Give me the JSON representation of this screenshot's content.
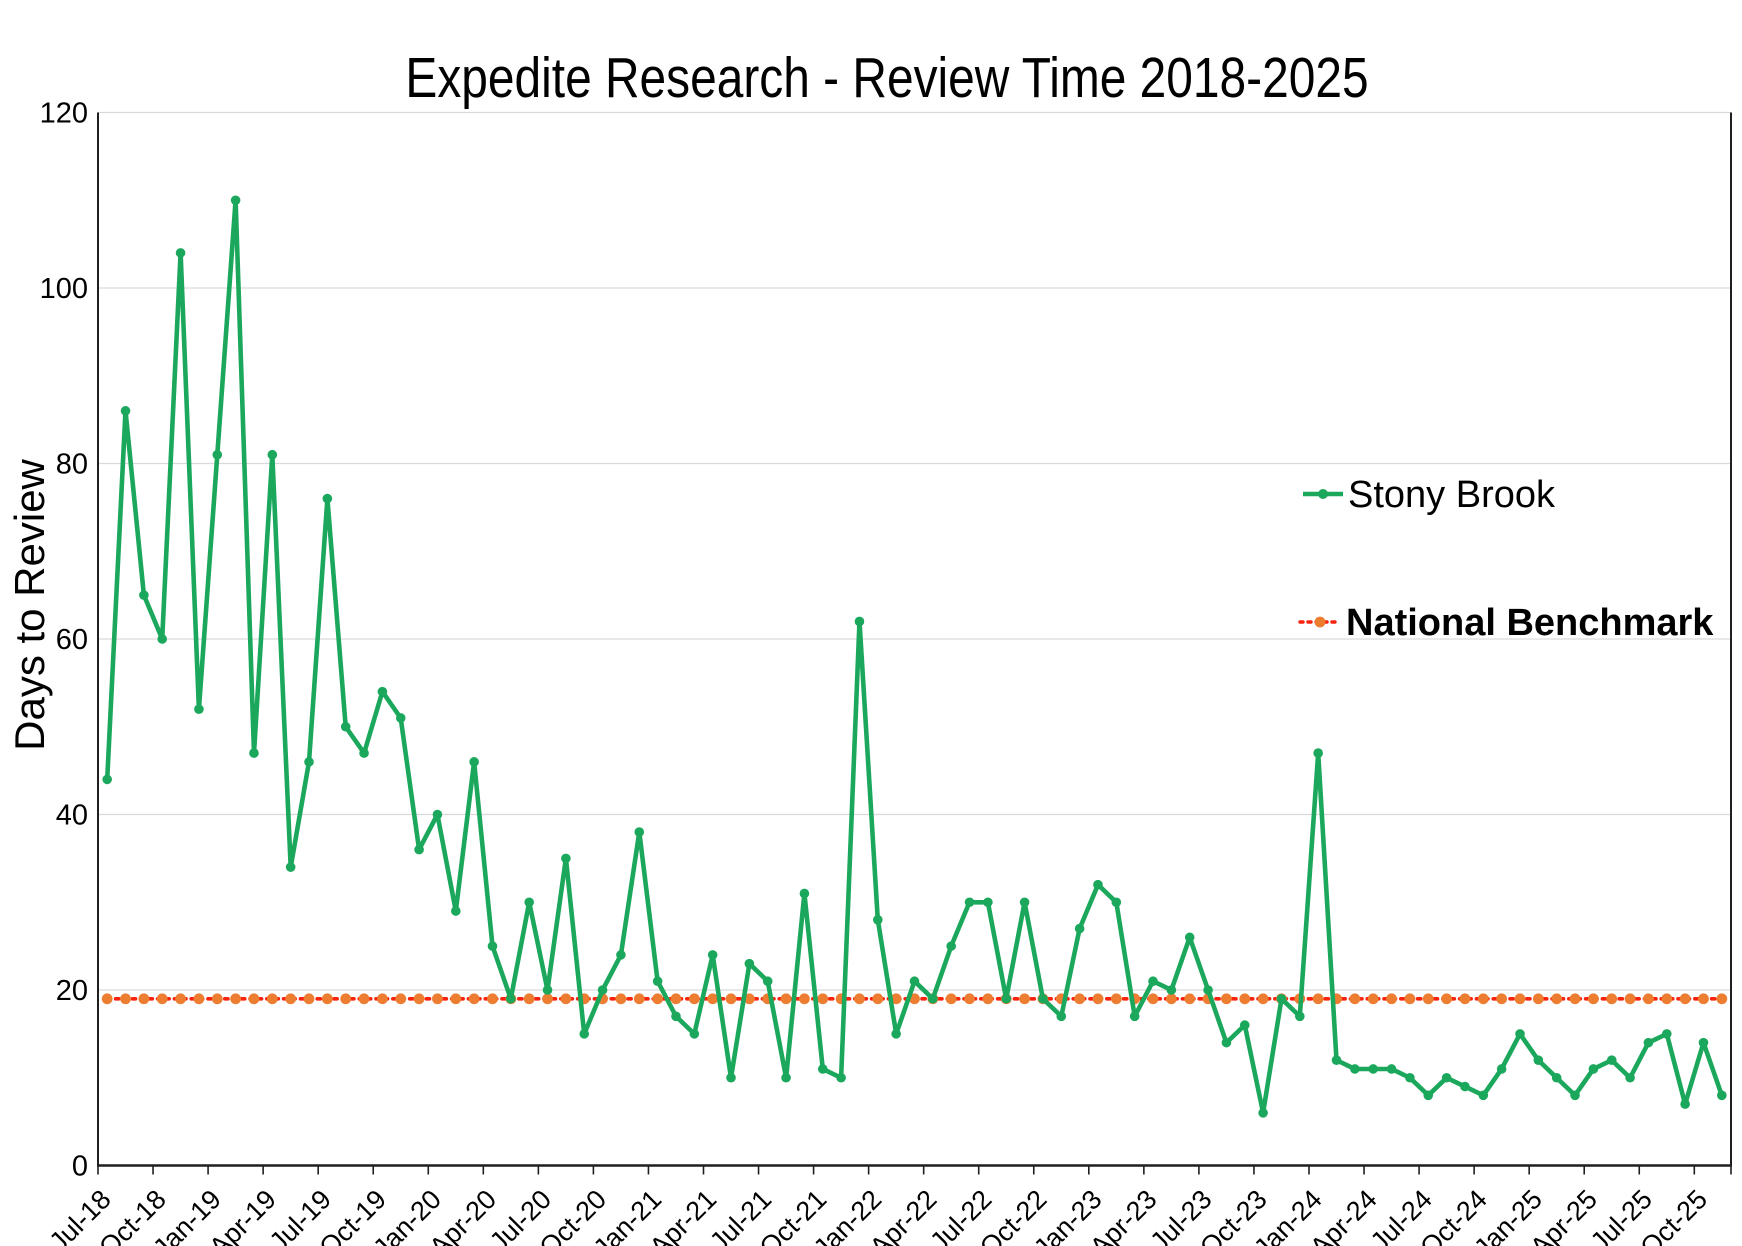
{
  "title": "Expedite Research - Review Time 2018-2025",
  "y_axis": {
    "title": "Days to Review",
    "ticks": [
      0,
      20,
      40,
      60,
      80,
      100,
      120
    ],
    "min": 0,
    "max": 120
  },
  "x_axis": {
    "tick_labels": [
      "Jul-18",
      "Oct-18",
      "Jan-19",
      "Apr-19",
      "Jul-19",
      "Oct-19",
      "Jan-20",
      "Apr-20",
      "Jul-20",
      "Oct-20",
      "Jan-21",
      "Apr-21",
      "Jul-21",
      "Oct-21",
      "Jan-22",
      "Apr-22",
      "Jul-22",
      "Oct-22",
      "Jan-23",
      "Apr-23",
      "Jul-23",
      "Oct-23",
      "Jan-24",
      "Apr-24",
      "Jul-24",
      "Oct-24",
      "Jan-25",
      "Apr-25",
      "Jul-25",
      "Oct-25"
    ]
  },
  "legend": [
    {
      "label": "Stony Brook",
      "bold": false
    },
    {
      "label": "National Benchmark",
      "bold": true
    }
  ],
  "colors": {
    "stony_line": "#1CA85C",
    "benchmark_dot_line": "#F8220D",
    "benchmark_marker": "#ED7D31",
    "gridline": "#D9D9D9",
    "axis": "#1F1F1F",
    "text": "#000000"
  },
  "chart_data": {
    "type": "line",
    "title": "Expedite Research - Review Time 2018-2025",
    "xlabel": "",
    "ylabel": "Days to Review",
    "ylim": [
      0,
      120
    ],
    "grid": true,
    "legend_position": "right-middle",
    "x_tick_labels": [
      "Jul-18",
      "Oct-18",
      "Jan-19",
      "Apr-19",
      "Jul-19",
      "Oct-19",
      "Jan-20",
      "Apr-20",
      "Jul-20",
      "Oct-20",
      "Jan-21",
      "Apr-21",
      "Jul-21",
      "Oct-21",
      "Jan-22",
      "Apr-22",
      "Jul-22",
      "Oct-22",
      "Jan-23",
      "Apr-23",
      "Jul-23",
      "Oct-23",
      "Jan-24",
      "Apr-24",
      "Jul-24",
      "Oct-24",
      "Jan-25",
      "Apr-25",
      "Jul-25",
      "Oct-25"
    ],
    "categories": [
      "Jul-18",
      "Aug-18",
      "Sep-18",
      "Oct-18",
      "Nov-18",
      "Dec-18",
      "Jan-19",
      "Feb-19",
      "Mar-19",
      "Apr-19",
      "May-19",
      "Jun-19",
      "Jul-19",
      "Aug-19",
      "Sep-19",
      "Oct-19",
      "Nov-19",
      "Dec-19",
      "Jan-20",
      "Feb-20",
      "Mar-20",
      "Apr-20",
      "May-20",
      "Jun-20",
      "Jul-20",
      "Aug-20",
      "Sep-20",
      "Oct-20",
      "Nov-20",
      "Dec-20",
      "Jan-21",
      "Feb-21",
      "Mar-21",
      "Apr-21",
      "May-21",
      "Jun-21",
      "Jul-21",
      "Aug-21",
      "Sep-21",
      "Oct-21",
      "Nov-21",
      "Dec-21",
      "Jan-22",
      "Feb-22",
      "Mar-22",
      "Apr-22",
      "May-22",
      "Jun-22",
      "Jul-22",
      "Aug-22",
      "Sep-22",
      "Oct-22",
      "Nov-22",
      "Dec-22",
      "Jan-23",
      "Feb-23",
      "Mar-23",
      "Apr-23",
      "May-23",
      "Jun-23",
      "Jul-23",
      "Aug-23",
      "Sep-23",
      "Oct-23",
      "Nov-23",
      "Dec-23",
      "Jan-24",
      "Feb-24",
      "Mar-24",
      "Apr-24",
      "May-24",
      "Jun-24",
      "Jul-24",
      "Aug-24",
      "Sep-24",
      "Oct-24",
      "Nov-24",
      "Dec-24",
      "Jan-25",
      "Feb-25",
      "Mar-25",
      "Apr-25",
      "May-25",
      "Jun-25",
      "Jul-25",
      "Aug-25",
      "Sep-25",
      "Oct-25",
      "Nov-25"
    ],
    "series": [
      {
        "name": "Stony Brook",
        "color": "#1CA85C",
        "marker": "circle",
        "values": [
          44,
          86,
          65,
          60,
          104,
          52,
          81,
          110,
          47,
          81,
          34,
          46,
          76,
          50,
          47,
          54,
          51,
          36,
          40,
          29,
          46,
          25,
          19,
          30,
          20,
          35,
          15,
          20,
          24,
          38,
          21,
          17,
          15,
          24,
          10,
          23,
          21,
          10,
          31,
          11,
          10,
          62,
          28,
          15,
          21,
          19,
          25,
          30,
          30,
          19,
          30,
          19,
          17,
          27,
          32,
          30,
          17,
          21,
          20,
          26,
          20,
          14,
          16,
          6,
          19,
          17,
          47,
          12,
          11,
          11,
          11,
          10,
          8,
          10,
          9,
          8,
          11,
          15,
          12,
          10,
          8,
          11,
          12,
          10,
          14,
          15,
          7,
          14,
          8
        ]
      },
      {
        "name": "National Benchmark",
        "line_color": "#F8220D",
        "marker_color": "#ED7D31",
        "style": "dotted",
        "constant_value": 19
      }
    ]
  }
}
